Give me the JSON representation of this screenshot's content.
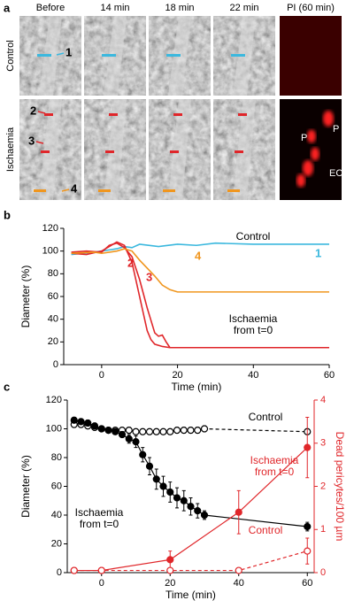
{
  "panel_a": {
    "label": "a",
    "columns": [
      "Before",
      "14 min",
      "18 min",
      "22 min",
      "PI (60 min)"
    ],
    "rows": [
      "Control",
      "Ischaemia"
    ],
    "markers": [
      "1",
      "2",
      "3",
      "4"
    ],
    "pi_labels": [
      "P",
      "P",
      "EC"
    ]
  },
  "chart_data": [
    {
      "type": "line",
      "panel_label": "b",
      "xlabel": "Time (min)",
      "ylabel": "Diameter (%)",
      "xlim": [
        -10,
        60
      ],
      "ylim": [
        0,
        120
      ],
      "xticks": [
        0,
        20,
        40,
        60
      ],
      "yticks": [
        0,
        20,
        40,
        60,
        80,
        100,
        120
      ],
      "series": [
        {
          "name": "1",
          "color": "#3bb8de",
          "x": [
            -8,
            -5,
            -2,
            0,
            2,
            4,
            6,
            8,
            10,
            15,
            20,
            25,
            30,
            40,
            50,
            60
          ],
          "values": [
            97,
            98,
            99,
            100,
            101,
            102,
            104,
            103,
            106,
            104,
            106,
            105,
            107,
            106,
            106,
            106
          ]
        },
        {
          "name": "2",
          "color": "#e0262a",
          "x": [
            -8,
            -4,
            0,
            2,
            4,
            6,
            8,
            10,
            12,
            13,
            14,
            16,
            18,
            20,
            60
          ],
          "values": [
            98,
            97,
            100,
            104,
            108,
            105,
            90,
            60,
            30,
            22,
            18,
            16,
            15,
            15,
            15
          ]
        },
        {
          "name": "3",
          "color": "#e0262a",
          "x": [
            -8,
            -4,
            0,
            2,
            4,
            6,
            8,
            10,
            12,
            14,
            15,
            16,
            17,
            18,
            20,
            60
          ],
          "values": [
            99,
            100,
            99,
            105,
            107,
            103,
            95,
            75,
            50,
            28,
            25,
            26,
            20,
            15,
            15,
            15
          ]
        },
        {
          "name": "4",
          "color": "#f0961e",
          "x": [
            -8,
            -2,
            0,
            4,
            6,
            8,
            10,
            12,
            14,
            16,
            18,
            20,
            30,
            40,
            60
          ],
          "values": [
            98,
            99,
            98,
            100,
            102,
            100,
            92,
            85,
            78,
            70,
            66,
            64,
            64,
            64,
            64
          ]
        }
      ],
      "annotations": [
        {
          "lines": [
            "Control"
          ],
          "color": "#000000"
        },
        {
          "lines": [
            "Ischaemia",
            "from t=0"
          ],
          "color": "#000000"
        }
      ]
    },
    {
      "type": "line",
      "panel_label": "c",
      "xlabel": "Time (min)",
      "ylabel": "Diameter (%)",
      "y2label": "Dead pericytes/100 µm",
      "xlim": [
        -10,
        62
      ],
      "ylim": [
        0,
        120
      ],
      "y2lim": [
        0,
        4
      ],
      "xticks": [
        0,
        20,
        40,
        60
      ],
      "yticks": [
        0,
        20,
        40,
        60,
        80,
        100,
        120
      ],
      "y2ticks": [
        0,
        1,
        2,
        3,
        4
      ],
      "y2color": "#e0262a",
      "series": [
        {
          "color": "#000000",
          "marker": "open",
          "dash": true,
          "x": [
            -8,
            -6,
            -4,
            -2,
            0,
            2,
            4,
            6,
            8,
            10,
            12,
            14,
            16,
            18,
            20,
            22,
            24,
            26,
            28,
            30,
            60
          ],
          "values": [
            103,
            103,
            102,
            101,
            100,
            99,
            99,
            99,
            99,
            98,
            98,
            98,
            98,
            98,
            98,
            99,
            99,
            99,
            99,
            100,
            98
          ],
          "errors": [
            2,
            2,
            2,
            2,
            1,
            1,
            1,
            1,
            2,
            2,
            2,
            2,
            2,
            2,
            2,
            2,
            2,
            2,
            2,
            2,
            2
          ]
        },
        {
          "color": "#000000",
          "marker": "filled",
          "dash": false,
          "x": [
            -8,
            -6,
            -4,
            -2,
            0,
            2,
            4,
            6,
            8,
            10,
            12,
            14,
            16,
            18,
            20,
            22,
            24,
            26,
            28,
            30,
            60
          ],
          "values": [
            106,
            105,
            104,
            102,
            100,
            99,
            98,
            96,
            93,
            91,
            82,
            74,
            65,
            60,
            56,
            52,
            50,
            46,
            43,
            40,
            32
          ],
          "errors": [
            2,
            2,
            2,
            2,
            1,
            1,
            2,
            2,
            3,
            4,
            5,
            6,
            7,
            7,
            7,
            7,
            7,
            6,
            5,
            3,
            3
          ]
        },
        {
          "color": "#e0262a",
          "marker": "filled",
          "dash": false,
          "axis": "y2",
          "x": [
            -8,
            0,
            20,
            40,
            60
          ],
          "values": [
            0.05,
            0.05,
            0.3,
            1.4,
            2.9
          ],
          "errors": [
            0,
            0,
            0.2,
            0.5,
            0.7
          ]
        },
        {
          "color": "#e0262a",
          "marker": "open",
          "dash": true,
          "axis": "y2",
          "x": [
            -8,
            0,
            20,
            40,
            60
          ],
          "values": [
            0.05,
            0.05,
            0.05,
            0.05,
            0.5
          ],
          "errors": [
            0,
            0,
            0,
            0,
            0.3
          ]
        }
      ],
      "annotations": [
        {
          "lines": [
            "Control"
          ],
          "color": "#000000"
        },
        {
          "lines": [
            "Ischaemia",
            "from t=0"
          ],
          "color": "#000000"
        },
        {
          "lines": [
            "Ischaemia",
            "from t=0"
          ],
          "color": "#e0262a"
        },
        {
          "lines": [
            "Control"
          ],
          "color": "#e0262a"
        }
      ]
    }
  ]
}
